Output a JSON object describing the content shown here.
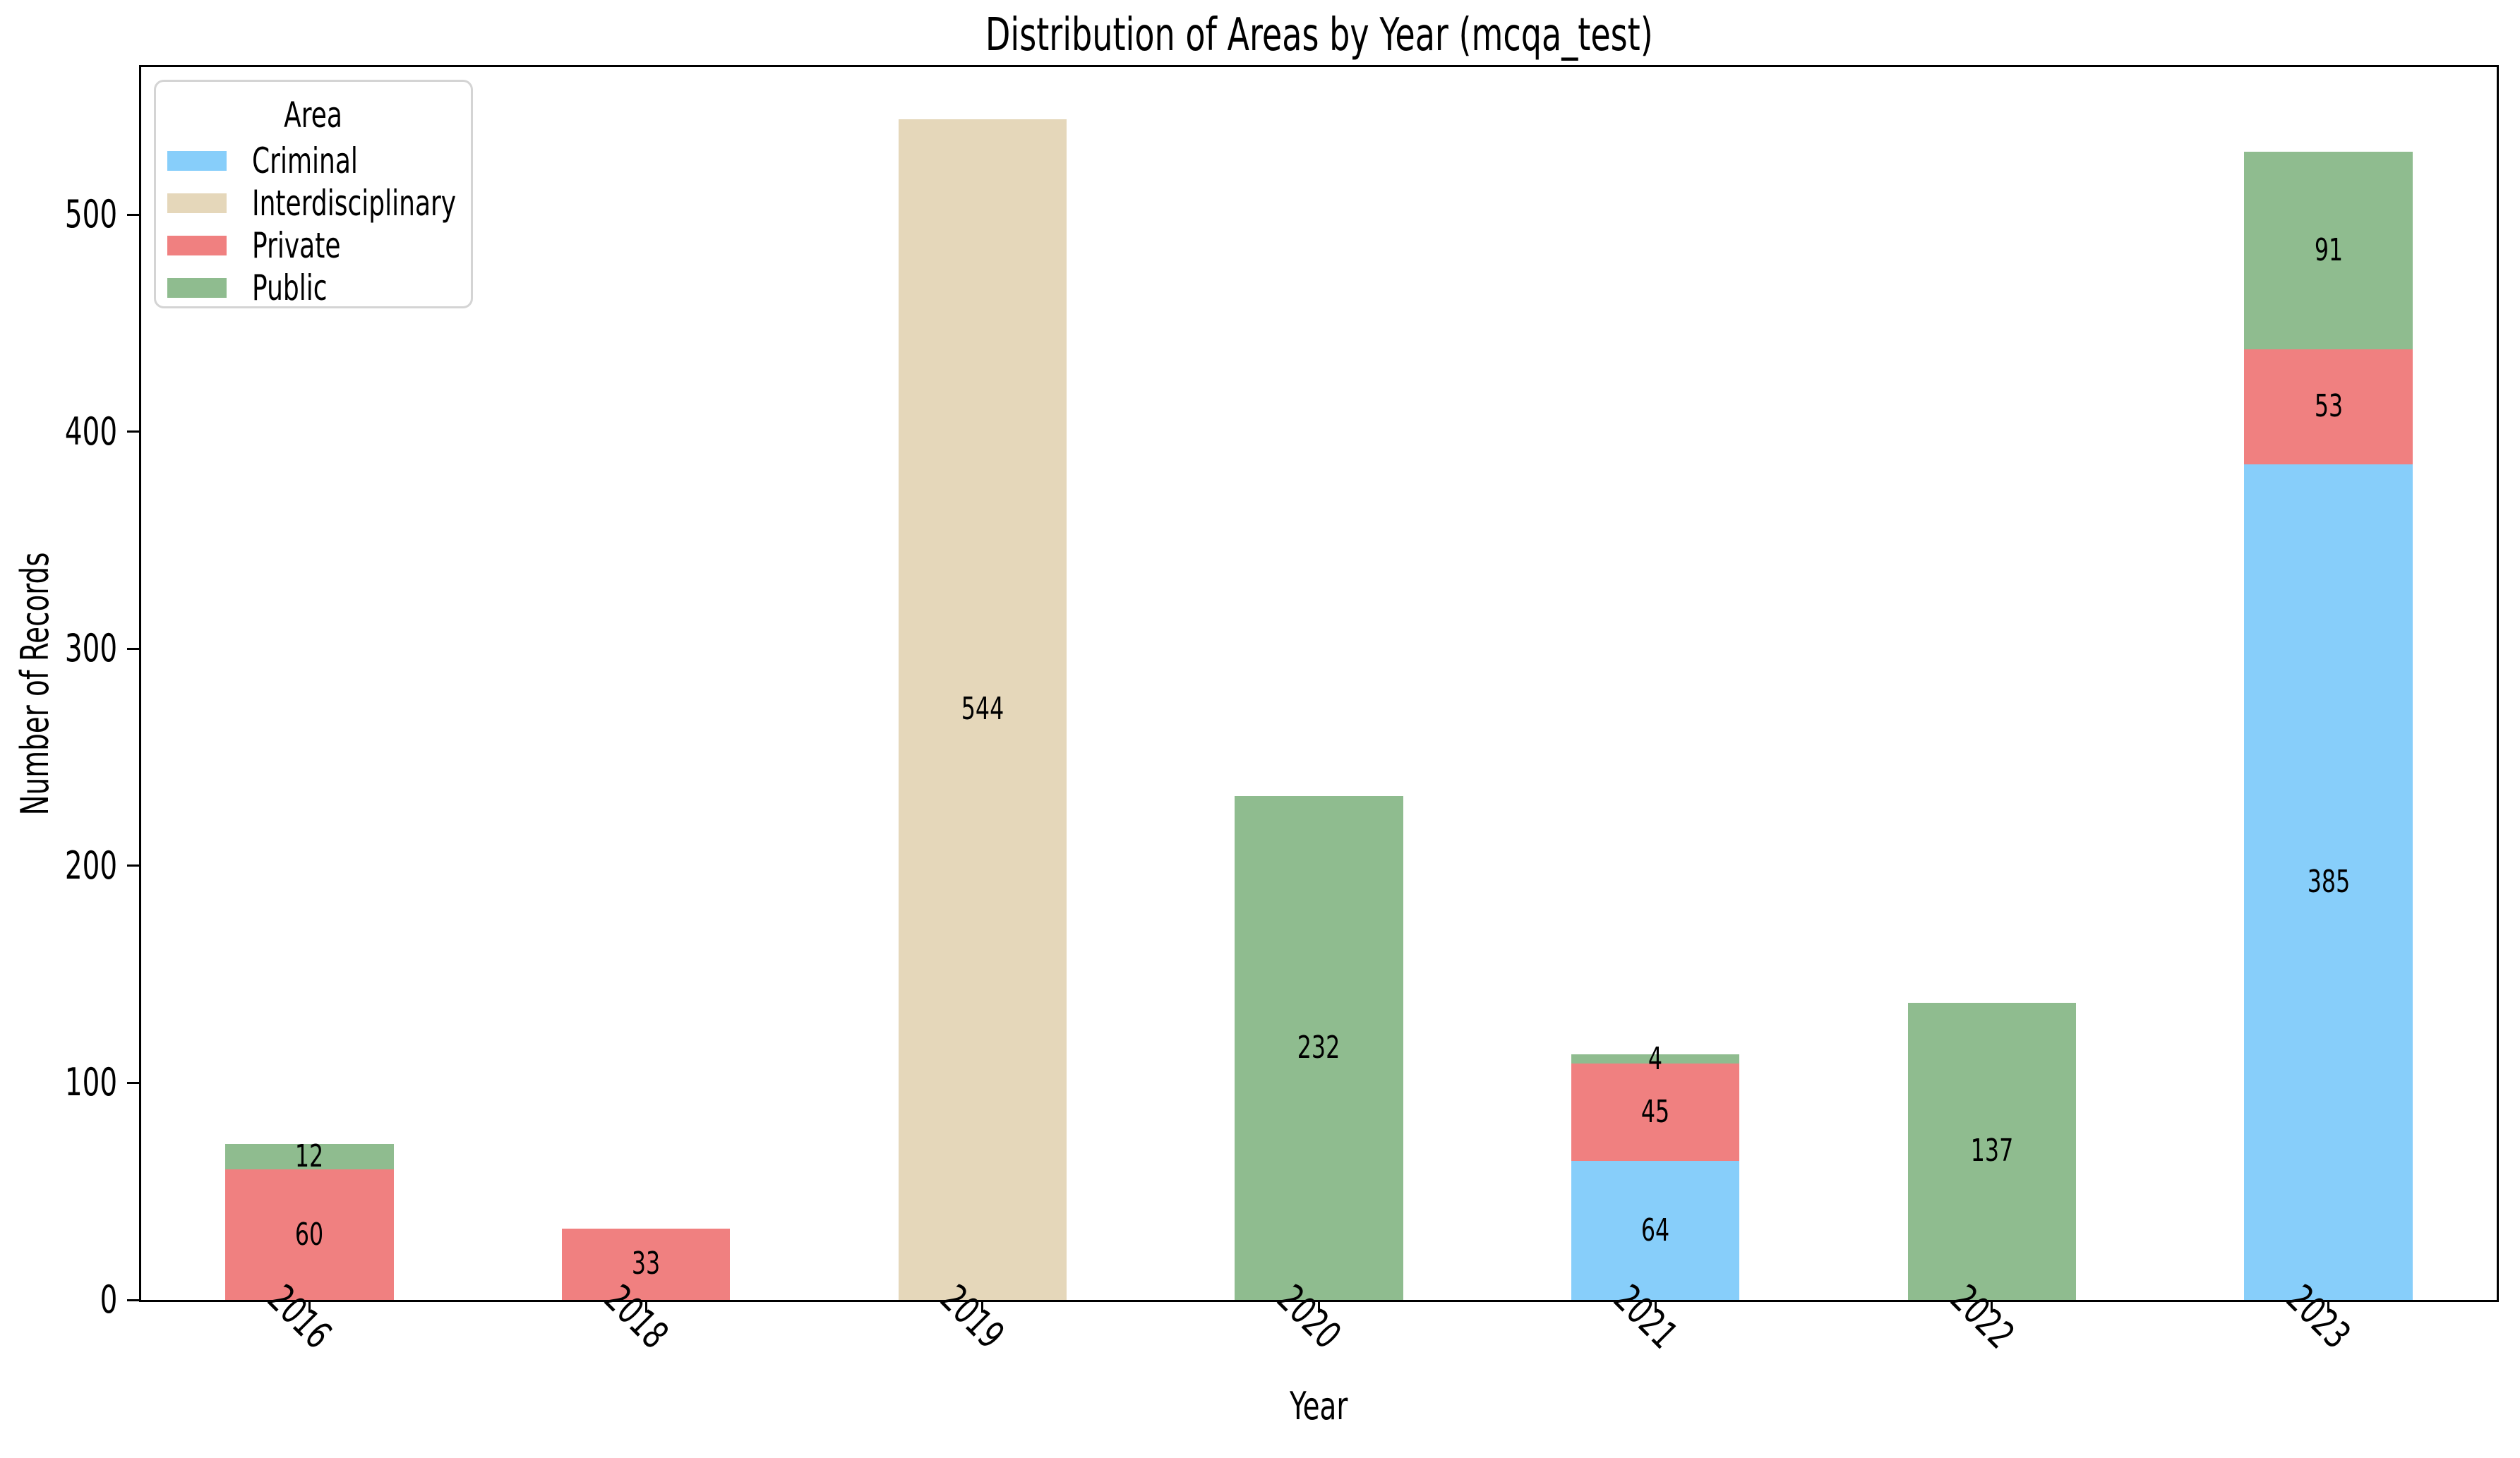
{
  "figure": {
    "title": "Distribution of Areas by Year (mcqa_test)",
    "xlabel": "Year",
    "ylabel": "Number of Records"
  },
  "legend": {
    "title": "Area",
    "entries": [
      {
        "label": "Criminal",
        "color": "#87CEFA"
      },
      {
        "label": "Interdisciplinary",
        "color": "#E5D7BA"
      },
      {
        "label": "Private",
        "color": "#F08080"
      },
      {
        "label": "Public",
        "color": "#8FBC8F"
      }
    ]
  },
  "chart_data": {
    "type": "bar",
    "stacked": true,
    "title": "Distribution of Areas by Year (mcqa_test)",
    "xlabel": "Year",
    "ylabel": "Number of Records",
    "categories": [
      "2016",
      "2018",
      "2019",
      "2020",
      "2021",
      "2022",
      "2023"
    ],
    "series": [
      {
        "name": "Criminal",
        "color": "#87CEFA",
        "values": [
          0,
          0,
          0,
          0,
          64,
          0,
          385
        ]
      },
      {
        "name": "Interdisciplinary",
        "color": "#E5D7BA",
        "values": [
          0,
          0,
          544,
          0,
          0,
          0,
          0
        ]
      },
      {
        "name": "Private",
        "color": "#F08080",
        "values": [
          60,
          33,
          0,
          0,
          45,
          0,
          53
        ]
      },
      {
        "name": "Public",
        "color": "#8FBC8F",
        "values": [
          12,
          0,
          0,
          232,
          4,
          137,
          91
        ]
      }
    ],
    "totals": [
      72,
      33,
      544,
      232,
      113,
      137,
      529
    ],
    "yticks": [
      0,
      100,
      200,
      300,
      400,
      500
    ],
    "ylim": [
      0,
      568
    ],
    "bar_width_fraction": 0.5,
    "xtick_rotation_deg": 45,
    "grid": false,
    "legend_title": "Area",
    "legend_position": "upper left",
    "value_labels": "center-of-segment"
  }
}
